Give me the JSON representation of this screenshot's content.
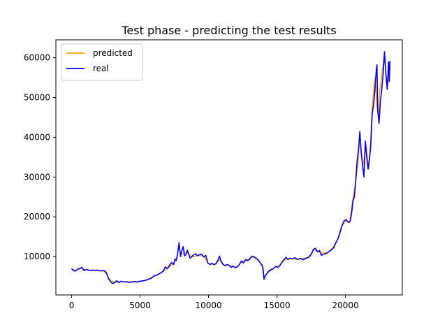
{
  "chart_data": {
    "type": "line",
    "title": "Test phase - predicting the test results",
    "xlabel": "",
    "ylabel": "",
    "xlim": [
      -1150,
      24150
    ],
    "ylim": [
      350,
      64500
    ],
    "x_ticks": [
      0,
      5000,
      10000,
      15000,
      20000
    ],
    "y_ticks": [
      10000,
      20000,
      30000,
      40000,
      50000,
      60000
    ],
    "grid": false,
    "legend": "upper left",
    "series": [
      {
        "name": "predicted",
        "color": "#ffa500",
        "points": [
          [
            0,
            6900
          ],
          [
            300,
            6500
          ],
          [
            700,
            7100
          ],
          [
            1000,
            6600
          ],
          [
            1500,
            6500
          ],
          [
            2000,
            6450
          ],
          [
            2400,
            6300
          ],
          [
            2600,
            5200
          ],
          [
            2900,
            3800
          ],
          [
            3200,
            3400
          ],
          [
            3600,
            3700
          ],
          [
            4000,
            3600
          ],
          [
            4500,
            3700
          ],
          [
            5000,
            3800
          ],
          [
            5500,
            4100
          ],
          [
            6000,
            5000
          ],
          [
            6500,
            5800
          ],
          [
            7000,
            7000
          ],
          [
            7500,
            8500
          ],
          [
            7700,
            9500
          ],
          [
            7800,
            12600
          ],
          [
            8000,
            10500
          ],
          [
            8400,
            11200
          ],
          [
            8800,
            9900
          ],
          [
            9200,
            10300
          ],
          [
            9600,
            10200
          ],
          [
            10000,
            8200
          ],
          [
            10500,
            8000
          ],
          [
            10800,
            9200
          ],
          [
            11100,
            7800
          ],
          [
            11500,
            7800
          ],
          [
            12000,
            7200
          ],
          [
            12500,
            8800
          ],
          [
            12800,
            9100
          ],
          [
            13100,
            9700
          ],
          [
            13400,
            9900
          ],
          [
            13700,
            9000
          ],
          [
            13900,
            7900
          ],
          [
            14050,
            4700
          ],
          [
            14200,
            5500
          ],
          [
            14500,
            6400
          ],
          [
            14800,
            7200
          ],
          [
            15200,
            7800
          ],
          [
            15600,
            9200
          ],
          [
            16000,
            9500
          ],
          [
            16500,
            9300
          ],
          [
            17000,
            9600
          ],
          [
            17400,
            9900
          ],
          [
            17700,
            11800
          ],
          [
            18000,
            11300
          ],
          [
            18300,
            10800
          ],
          [
            18700,
            11000
          ],
          [
            19000,
            12000
          ],
          [
            19400,
            14000
          ],
          [
            19700,
            17500
          ],
          [
            20000,
            19000
          ],
          [
            20300,
            18500
          ],
          [
            20500,
            23500
          ],
          [
            20700,
            28000
          ],
          [
            20900,
            33000
          ],
          [
            21050,
            40500
          ],
          [
            21200,
            35000
          ],
          [
            21300,
            33000
          ],
          [
            21500,
            38000
          ],
          [
            21700,
            32000
          ],
          [
            21800,
            36000
          ],
          [
            21900,
            44000
          ],
          [
            22000,
            49000
          ],
          [
            22150,
            55000
          ],
          [
            22300,
            48000
          ],
          [
            22400,
            45000
          ],
          [
            22500,
            52000
          ],
          [
            22700,
            57000
          ],
          [
            22850,
            61000
          ],
          [
            23000,
            54000
          ],
          [
            23100,
            53500
          ],
          [
            23250,
            58500
          ]
        ]
      },
      {
        "name": "real",
        "color": "#0000ff",
        "points": [
          [
            0,
            7000
          ],
          [
            150,
            6400
          ],
          [
            300,
            6400
          ],
          [
            450,
            6900
          ],
          [
            600,
            7000
          ],
          [
            750,
            7300
          ],
          [
            900,
            6500
          ],
          [
            1100,
            6800
          ],
          [
            1300,
            6500
          ],
          [
            1500,
            6600
          ],
          [
            1700,
            6500
          ],
          [
            1900,
            6600
          ],
          [
            2100,
            6400
          ],
          [
            2300,
            6500
          ],
          [
            2450,
            6300
          ],
          [
            2550,
            5900
          ],
          [
            2700,
            4400
          ],
          [
            2850,
            3600
          ],
          [
            3000,
            3200
          ],
          [
            3150,
            3500
          ],
          [
            3300,
            3900
          ],
          [
            3450,
            3500
          ],
          [
            3600,
            3800
          ],
          [
            3800,
            3600
          ],
          [
            4000,
            3700
          ],
          [
            4200,
            3500
          ],
          [
            4400,
            3600
          ],
          [
            4600,
            3700
          ],
          [
            4800,
            3600
          ],
          [
            5000,
            3800
          ],
          [
            5200,
            3900
          ],
          [
            5400,
            4000
          ],
          [
            5600,
            4300
          ],
          [
            5800,
            4500
          ],
          [
            6000,
            5100
          ],
          [
            6200,
            5300
          ],
          [
            6400,
            5700
          ],
          [
            6550,
            6000
          ],
          [
            6700,
            6400
          ],
          [
            6850,
            7400
          ],
          [
            7000,
            7000
          ],
          [
            7150,
            7800
          ],
          [
            7300,
            8500
          ],
          [
            7450,
            8000
          ],
          [
            7550,
            9400
          ],
          [
            7650,
            9000
          ],
          [
            7750,
            11000
          ],
          [
            7850,
            13500
          ],
          [
            7950,
            10000
          ],
          [
            8050,
            11500
          ],
          [
            8150,
            12500
          ],
          [
            8250,
            10200
          ],
          [
            8350,
            10500
          ],
          [
            8450,
            11600
          ],
          [
            8550,
            10600
          ],
          [
            8650,
            9600
          ],
          [
            8750,
            9900
          ],
          [
            8900,
            10400
          ],
          [
            9050,
            10700
          ],
          [
            9200,
            10200
          ],
          [
            9350,
            10500
          ],
          [
            9500,
            10600
          ],
          [
            9650,
            9900
          ],
          [
            9800,
            10300
          ],
          [
            9950,
            8400
          ],
          [
            10100,
            8000
          ],
          [
            10250,
            8300
          ],
          [
            10400,
            8000
          ],
          [
            10550,
            8300
          ],
          [
            10700,
            9200
          ],
          [
            10800,
            10100
          ],
          [
            10900,
            9000
          ],
          [
            11050,
            8100
          ],
          [
            11200,
            7700
          ],
          [
            11350,
            8000
          ],
          [
            11500,
            7800
          ],
          [
            11650,
            7300
          ],
          [
            11800,
            7600
          ],
          [
            11950,
            7200
          ],
          [
            12100,
            7400
          ],
          [
            12250,
            8000
          ],
          [
            12400,
            8900
          ],
          [
            12550,
            8400
          ],
          [
            12700,
            9200
          ],
          [
            12850,
            9000
          ],
          [
            13000,
            9300
          ],
          [
            13150,
            10100
          ],
          [
            13300,
            10000
          ],
          [
            13450,
            9600
          ],
          [
            13600,
            9200
          ],
          [
            13750,
            8600
          ],
          [
            13850,
            8000
          ],
          [
            13950,
            7600
          ],
          [
            14000,
            6400
          ],
          [
            14050,
            4300
          ],
          [
            14150,
            5200
          ],
          [
            14300,
            6000
          ],
          [
            14450,
            6500
          ],
          [
            14600,
            6800
          ],
          [
            14750,
            7000
          ],
          [
            14900,
            7500
          ],
          [
            15050,
            7300
          ],
          [
            15200,
            7700
          ],
          [
            15350,
            8600
          ],
          [
            15500,
            9200
          ],
          [
            15650,
            9800
          ],
          [
            15800,
            9300
          ],
          [
            15950,
            9600
          ],
          [
            16100,
            9400
          ],
          [
            16300,
            9700
          ],
          [
            16500,
            9300
          ],
          [
            16700,
            9500
          ],
          [
            16900,
            9200
          ],
          [
            17100,
            9500
          ],
          [
            17300,
            9800
          ],
          [
            17500,
            10600
          ],
          [
            17650,
            11800
          ],
          [
            17800,
            12100
          ],
          [
            17950,
            11200
          ],
          [
            18100,
            11500
          ],
          [
            18250,
            10300
          ],
          [
            18400,
            10600
          ],
          [
            18550,
            10700
          ],
          [
            18700,
            11000
          ],
          [
            18850,
            11400
          ],
          [
            19000,
            11700
          ],
          [
            19150,
            12300
          ],
          [
            19300,
            13500
          ],
          [
            19450,
            14500
          ],
          [
            19600,
            16000
          ],
          [
            19750,
            17800
          ],
          [
            19900,
            19000
          ],
          [
            20050,
            19300
          ],
          [
            20200,
            18600
          ],
          [
            20350,
            18900
          ],
          [
            20450,
            21000
          ],
          [
            20550,
            24000
          ],
          [
            20650,
            25000
          ],
          [
            20750,
            29000
          ],
          [
            20850,
            34000
          ],
          [
            20950,
            37000
          ],
          [
            21050,
            41500
          ],
          [
            21150,
            36000
          ],
          [
            21250,
            33000
          ],
          [
            21350,
            30000
          ],
          [
            21450,
            39000
          ],
          [
            21550,
            35000
          ],
          [
            21650,
            32000
          ],
          [
            21750,
            34500
          ],
          [
            21850,
            38000
          ],
          [
            21950,
            46000
          ],
          [
            22050,
            48000
          ],
          [
            22150,
            52000
          ],
          [
            22250,
            57000
          ],
          [
            22300,
            58200
          ],
          [
            22350,
            47000
          ],
          [
            22450,
            43500
          ],
          [
            22550,
            49000
          ],
          [
            22650,
            52000
          ],
          [
            22750,
            56000
          ],
          [
            22850,
            61500
          ],
          [
            22950,
            56000
          ],
          [
            23050,
            52000
          ],
          [
            23150,
            59000
          ],
          [
            23200,
            54000
          ],
          [
            23250,
            59200
          ]
        ]
      }
    ]
  }
}
